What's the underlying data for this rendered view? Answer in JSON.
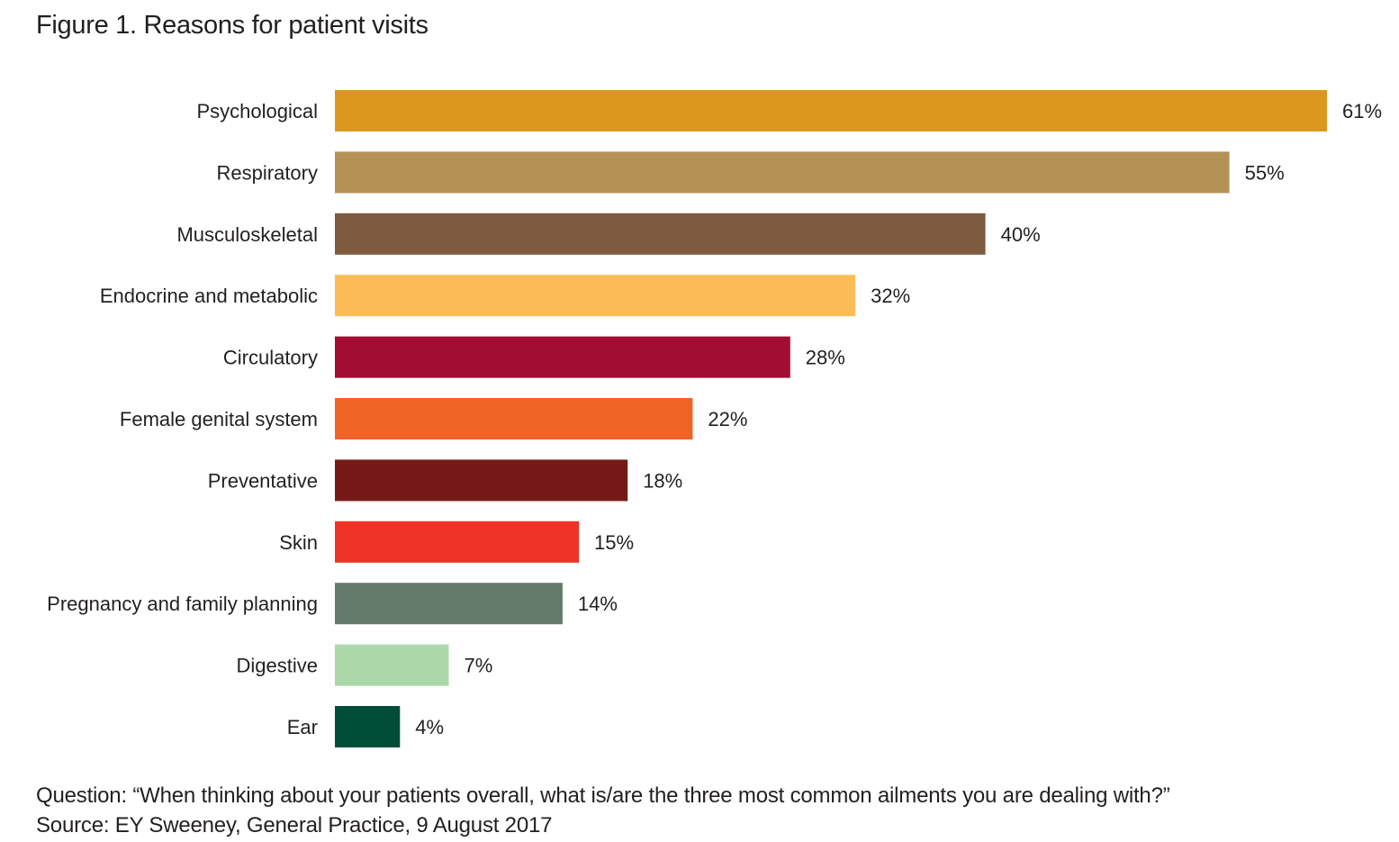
{
  "title": "Figure 1. Reasons for patient visits",
  "question": "Question: “When thinking about your patients overall, what is/are the three most common ailments you are dealing with?”",
  "source": "Source: EY Sweeney, General Practice, 9 August 2017",
  "chart_data": {
    "type": "bar",
    "orientation": "horizontal",
    "categories": [
      "Psychological",
      "Respiratory",
      "Musculoskeletal",
      "Endocrine and metabolic",
      "Circulatory",
      "Female genital system",
      "Preventative",
      "Skin",
      "Pregnancy and family planning",
      "Digestive",
      "Ear"
    ],
    "values": [
      61,
      55,
      40,
      32,
      28,
      22,
      18,
      15,
      14,
      7,
      4
    ],
    "value_labels": [
      "61%",
      "55%",
      "40%",
      "32%",
      "28%",
      "22%",
      "18%",
      "15%",
      "14%",
      "7%",
      "4%"
    ],
    "colors": [
      "#dc981e",
      "#b49154",
      "#7e5a3f",
      "#fcbd57",
      "#a20e33",
      "#f06426",
      "#761a17",
      "#ef3326",
      "#637b6a",
      "#acd8a9",
      "#004e38"
    ],
    "title": "Figure 1. Reasons for patient visits",
    "xlabel": "",
    "ylabel": "",
    "xlim": [
      0,
      61
    ],
    "grid": false,
    "legend": "none"
  }
}
